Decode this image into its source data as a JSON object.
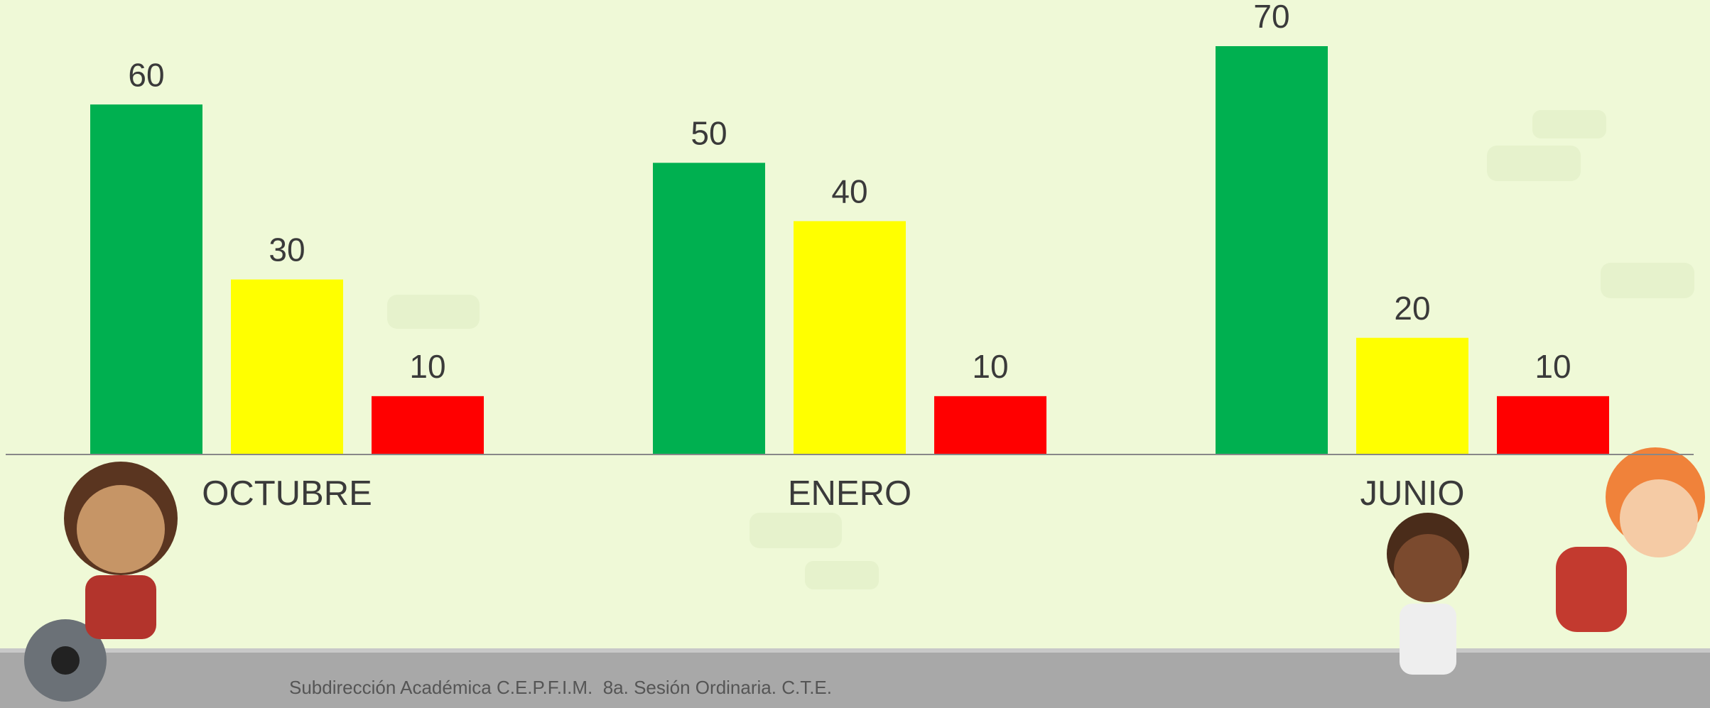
{
  "chart_data": {
    "type": "bar",
    "categories": [
      "OCTUBRE",
      "ENERO",
      "JUNIO"
    ],
    "series": [
      {
        "color": "#00b050",
        "values": [
          60,
          50,
          70
        ]
      },
      {
        "color": "#ffff00",
        "values": [
          30,
          40,
          20
        ]
      },
      {
        "color": "#ff0000",
        "values": [
          10,
          10,
          10
        ]
      }
    ],
    "ylim": [
      0,
      70
    ]
  },
  "footer": {
    "text": "Subdirección Académica C.E.P.F.I.M.  8a. Sesión Ordinaria. C.T.E."
  }
}
